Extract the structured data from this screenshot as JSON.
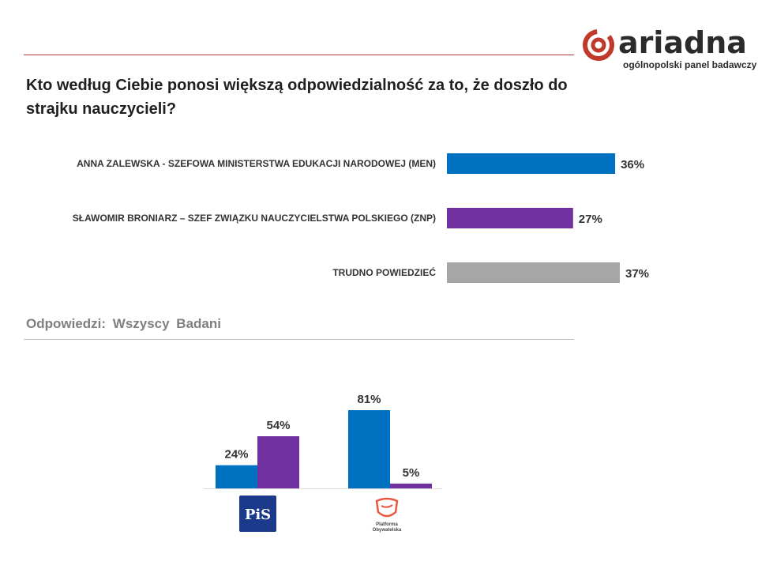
{
  "brand": {
    "name": "ariadna",
    "tagline": "ogólnopolski panel badawczy",
    "color": "#c0392b"
  },
  "title": "Kto według Ciebie ponosi większą odpowiedzialność za to, że doszło do strajku nauczycieli?",
  "subtitle": "Odpowiedzi: Wszyscy Badani",
  "logos": {
    "pis": "PiS",
    "po": "Platforma Obywatelska"
  },
  "chart_data": [
    {
      "type": "bar",
      "orientation": "horizontal",
      "title": "Wszyscy Badani",
      "categories": [
        "ANNA ZALEWSKA  - SZEFOWA MINISTERSTWA EDUKACJI NARODOWEJ (MEN)",
        "SŁAWOMIR BRONIARZ – SZEF ZWIĄZKU NAUCZYCIELSTWA POLSKIEGO (ZNP)",
        "TRUDNO POWIEDZIEĆ"
      ],
      "values": [
        36,
        27,
        37
      ],
      "value_labels": [
        "36%",
        "27%",
        "37%"
      ],
      "colors": [
        "#0070c0",
        "#7030a0",
        "#a6a6a6"
      ],
      "xlim": [
        0,
        37
      ]
    },
    {
      "type": "bar",
      "orientation": "vertical",
      "categories": [
        "PiS",
        "Platforma Obywatelska"
      ],
      "series": [
        {
          "name": "ANNA ZALEWSKA",
          "color": "#0070c0",
          "values": [
            24,
            81
          ],
          "value_labels": [
            "24%",
            "81%"
          ]
        },
        {
          "name": "SŁAWOMIR BRONIARZ",
          "color": "#7030a0",
          "values": [
            54,
            5
          ],
          "value_labels": [
            "54%",
            "5%"
          ]
        }
      ],
      "ylim": [
        0,
        81
      ]
    }
  ]
}
